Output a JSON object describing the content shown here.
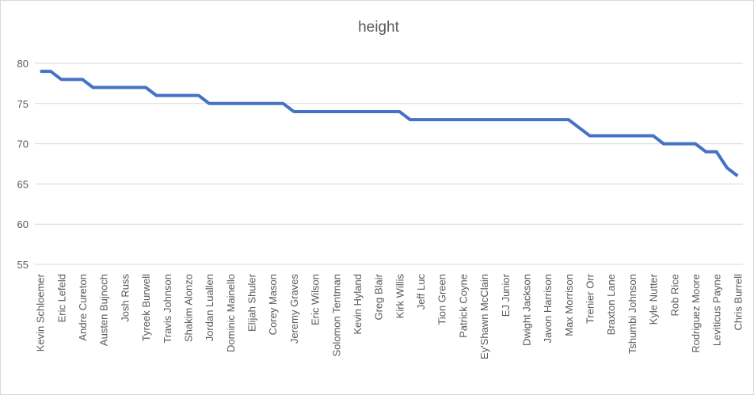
{
  "chart_data": {
    "type": "line",
    "title": "height",
    "categories": [
      "Kevin Schloemer",
      null,
      "Eric Lefeld",
      null,
      "Andre Cureton",
      null,
      "Austen Bujnoch",
      null,
      "Josh Russ",
      null,
      "Tyreek Burwell",
      null,
      "Travis Johnson",
      null,
      "Shakim Alonzo",
      null,
      "Jordan Luallen",
      null,
      "Dominic Mainello",
      null,
      "Elijah Shuler",
      null,
      "Corey Mason",
      null,
      "Jeremy Graves",
      null,
      "Eric Wilson",
      null,
      "Solomon Tentman",
      null,
      "Kevin Hyland",
      null,
      "Greg Blair",
      null,
      "Kirk Willis",
      null,
      "Jeff Luc",
      null,
      "Tion Green",
      null,
      "Patrick Coyne",
      null,
      "Ey'Shawn McClain",
      null,
      "EJ Junior",
      null,
      "Dwight Jackson",
      null,
      "Javon Harrison",
      null,
      "Max Morrison",
      null,
      "Trenier Orr",
      null,
      "Braxton Lane",
      null,
      "Tshumbi Johnson",
      null,
      "Kyle Nutter",
      null,
      "Rob Rice",
      null,
      "Rodriguez Moore",
      null,
      "Leviticus Payne",
      null,
      "Chris Burrell"
    ],
    "series": [
      {
        "name": "height",
        "color": "#4472c4",
        "values": [
          79,
          79,
          78,
          78,
          78,
          77,
          77,
          77,
          77,
          77,
          77,
          76,
          76,
          76,
          76,
          76,
          75,
          75,
          75,
          75,
          75,
          75,
          75,
          75,
          74,
          74,
          74,
          74,
          74,
          74,
          74,
          74,
          74,
          74,
          74,
          73,
          73,
          73,
          73,
          73,
          73,
          73,
          73,
          73,
          73,
          73,
          73,
          73,
          73,
          73,
          73,
          72,
          71,
          71,
          71,
          71,
          71,
          71,
          71,
          70,
          70,
          70,
          70,
          69,
          69,
          67,
          66
        ]
      }
    ],
    "ylim": [
      55,
      80
    ],
    "yticks": [
      55,
      60,
      65,
      70,
      75,
      80
    ],
    "grid": true
  }
}
